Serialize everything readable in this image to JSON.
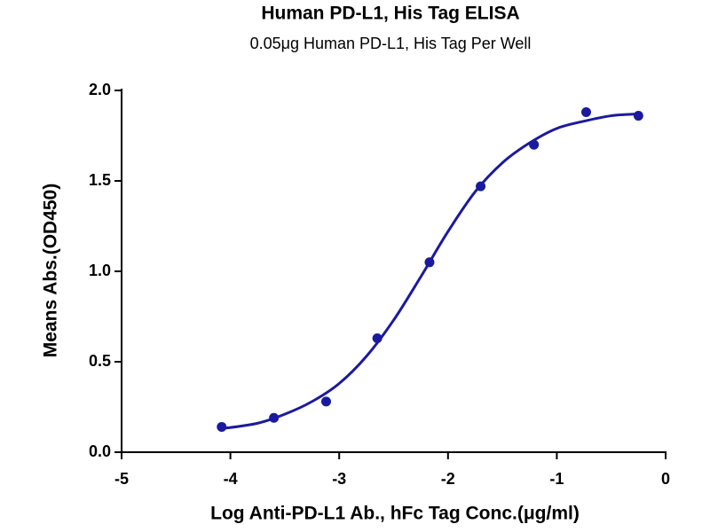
{
  "chart_data": {
    "type": "scatter",
    "title": "Human PD-L1, His Tag ELISA",
    "subtitle": "0.05μg Human PD-L1, His Tag Per Well",
    "x_label": "Log Anti-PD-L1 Ab., hFc Tag Conc.(μg/ml)",
    "y_label": "Means Abs.(OD450)",
    "xlim": [
      -5,
      0
    ],
    "xticks": [
      -5,
      -4,
      -3,
      -2,
      -1,
      0
    ],
    "ylim": [
      0,
      2
    ],
    "yticks": [
      {
        "value": 0,
        "label": "0.0"
      },
      {
        "value": 0.5,
        "label": "0.5"
      },
      {
        "value": 1,
        "label": "1.0"
      },
      {
        "value": 1.5,
        "label": "1.5"
      },
      {
        "value": 2,
        "label": "2.0"
      }
    ],
    "series": [
      {
        "style": "markers",
        "color": "#1a1aa0",
        "x": [
          -4.08,
          -3.6,
          -3.12,
          -2.65,
          -2.17,
          -1.7,
          -1.21,
          -0.73,
          -0.25
        ],
        "values": [
          0.14,
          0.19,
          0.28,
          0.63,
          1.05,
          1.47,
          1.7,
          1.88,
          1.86
        ]
      },
      {
        "style": "line",
        "color": "#1a1aa0",
        "x": [
          -4.08,
          -3.75,
          -3.5,
          -3.25,
          -3.0,
          -2.75,
          -2.5,
          -2.25,
          -2.0,
          -1.75,
          -1.5,
          -1.25,
          -1.0,
          -0.75,
          -0.5,
          -0.25
        ],
        "values": [
          0.13,
          0.16,
          0.21,
          0.28,
          0.38,
          0.53,
          0.73,
          0.97,
          1.22,
          1.44,
          1.6,
          1.71,
          1.79,
          1.83,
          1.86,
          1.87
        ]
      }
    ]
  }
}
